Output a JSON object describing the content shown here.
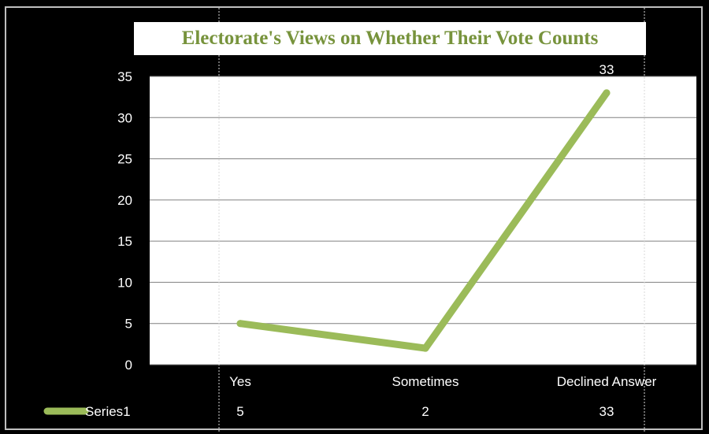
{
  "chart_data": {
    "type": "line",
    "title": "Electorate's Views on Whether Their Vote Counts",
    "categories": [
      "Yes",
      "Sometimes",
      "Declined Answer"
    ],
    "series": [
      {
        "name": "Series1",
        "values": [
          5,
          2,
          33
        ]
      }
    ],
    "data_labels": [
      "33"
    ],
    "ylim": [
      0,
      35
    ],
    "yticks": [
      0,
      5,
      10,
      15,
      20,
      25,
      30,
      35
    ],
    "grid": true,
    "legend": "bottom-left data table",
    "line_color": "#9bbb59",
    "title_color": "#77933c",
    "background": "#000000",
    "plot_background": "#ffffff"
  }
}
